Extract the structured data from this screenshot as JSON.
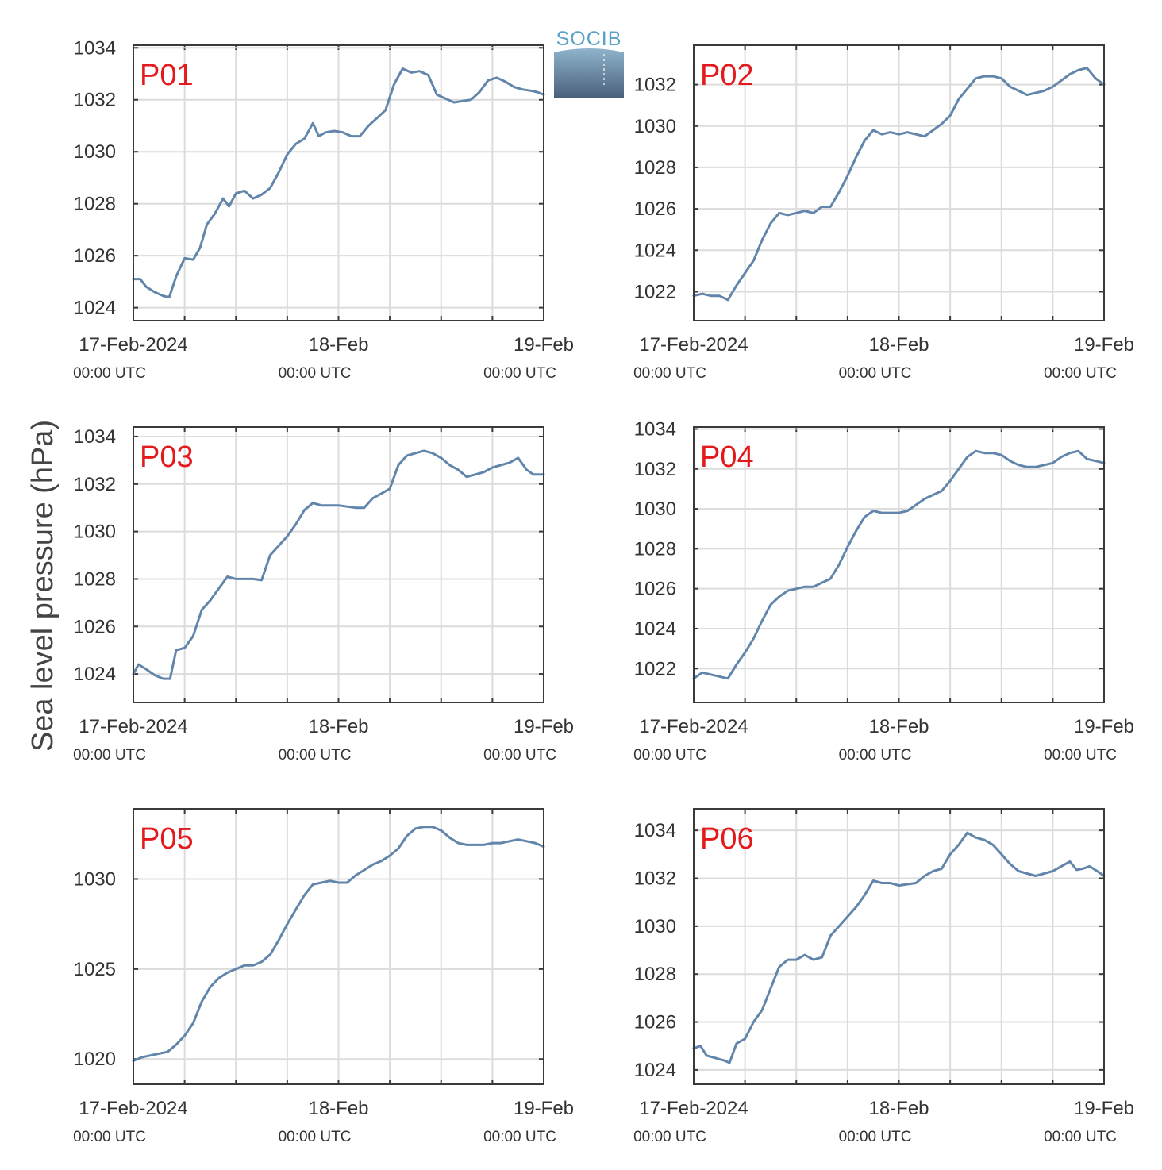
{
  "ylabel": "Sea level pressure (hPa)",
  "logo": {
    "text": "SOCIB"
  },
  "colors": {
    "series": "#6286ab",
    "title": "#e31a1c",
    "grid": "#dcdcdc",
    "frame": "#3a3a3a"
  },
  "x_ticks": [
    {
      "date": "17-Feb-2024",
      "time": "00:00 UTC"
    },
    {
      "date": "18-Feb",
      "time": "00:00 UTC"
    },
    {
      "date": "19-Feb",
      "time": "00:00 UTC"
    }
  ],
  "chart_data": [
    {
      "type": "line",
      "title": "P01",
      "xlabel": "",
      "ylabel": "Sea level pressure (hPa)",
      "xlim": [
        0,
        48
      ],
      "ylim": [
        1023.5,
        1034.1
      ],
      "yticks": [
        1024,
        1026,
        1028,
        1030,
        1032,
        1034
      ],
      "x": [
        0,
        0.8,
        1.5,
        2.5,
        3.5,
        4.2,
        5,
        6,
        7,
        7.8,
        8.6,
        9.5,
        10.5,
        11.2,
        12,
        13,
        14,
        15,
        16,
        17,
        18,
        19,
        20,
        21,
        21.7,
        22.5,
        23.5,
        24.5,
        25.5,
        26.5,
        27.5,
        28.5,
        29.5,
        30.5,
        31.5,
        32.5,
        33.5,
        34.5,
        35.5,
        36.5,
        37.5,
        38.5,
        39.5,
        40.5,
        41.5,
        42.5,
        43.5,
        44.5,
        45.5,
        46.5,
        47.2,
        48
      ],
      "y": [
        1025.1,
        1025.1,
        1024.8,
        1024.6,
        1024.45,
        1024.4,
        1025.2,
        1025.9,
        1025.85,
        1026.3,
        1027.2,
        1027.6,
        1028.2,
        1027.9,
        1028.4,
        1028.5,
        1028.2,
        1028.35,
        1028.6,
        1029.2,
        1029.9,
        1030.3,
        1030.5,
        1031.1,
        1030.6,
        1030.75,
        1030.8,
        1030.75,
        1030.6,
        1030.6,
        1031.0,
        1031.3,
        1031.6,
        1032.6,
        1033.2,
        1033.05,
        1033.1,
        1032.95,
        1032.2,
        1032.05,
        1031.9,
        1031.95,
        1032.0,
        1032.3,
        1032.75,
        1032.85,
        1032.7,
        1032.5,
        1032.4,
        1032.35,
        1032.3,
        1032.2
      ]
    },
    {
      "type": "line",
      "title": "P02",
      "xlabel": "",
      "ylabel": "Sea level pressure (hPa)",
      "xlim": [
        0,
        48
      ],
      "ylim": [
        1020.6,
        1033.9
      ],
      "yticks": [
        1022,
        1024,
        1026,
        1028,
        1030,
        1032
      ],
      "x": [
        0,
        1,
        2,
        3,
        4,
        5,
        6,
        7,
        8,
        9,
        10,
        11,
        12,
        13,
        14,
        15,
        16,
        17,
        18,
        19,
        20,
        21,
        22,
        23,
        24,
        25,
        26,
        27,
        28,
        29,
        30,
        31,
        32,
        33,
        34,
        35,
        36,
        37,
        38,
        39,
        40,
        41,
        42,
        43,
        44,
        45,
        46,
        47,
        48
      ],
      "y": [
        1021.8,
        1021.9,
        1021.8,
        1021.8,
        1021.6,
        1022.3,
        1022.9,
        1023.5,
        1024.5,
        1025.3,
        1025.8,
        1025.7,
        1025.8,
        1025.9,
        1025.8,
        1026.1,
        1026.1,
        1026.8,
        1027.6,
        1028.5,
        1029.3,
        1029.8,
        1029.6,
        1029.7,
        1029.6,
        1029.7,
        1029.6,
        1029.5,
        1029.8,
        1030.1,
        1030.5,
        1031.3,
        1031.8,
        1032.3,
        1032.4,
        1032.4,
        1032.3,
        1031.9,
        1031.7,
        1031.5,
        1031.6,
        1031.7,
        1031.9,
        1032.2,
        1032.5,
        1032.7,
        1032.8,
        1032.3,
        1032.0
      ]
    },
    {
      "type": "line",
      "title": "P03",
      "xlabel": "",
      "ylabel": "Sea level pressure (hPa)",
      "xlim": [
        0,
        48
      ],
      "ylim": [
        1022.8,
        1034.4
      ],
      "yticks": [
        1024,
        1026,
        1028,
        1030,
        1032,
        1034
      ],
      "x": [
        0,
        0.6,
        1.5,
        2.5,
        3.5,
        4.3,
        5,
        6,
        7,
        8,
        9,
        10,
        11,
        12,
        13,
        14,
        15,
        16,
        17,
        18,
        19,
        20,
        21,
        22,
        23,
        24,
        25,
        26,
        27,
        28,
        29,
        30,
        31,
        32,
        33,
        34,
        35,
        36,
        37,
        38,
        39,
        40,
        41,
        42,
        43,
        44,
        45,
        46,
        46.8,
        47.5,
        48
      ],
      "y": [
        1024.0,
        1024.4,
        1024.2,
        1023.95,
        1023.8,
        1023.8,
        1025.0,
        1025.1,
        1025.6,
        1026.7,
        1027.1,
        1027.6,
        1028.1,
        1028.0,
        1028.0,
        1028.0,
        1027.95,
        1029.0,
        1029.4,
        1029.8,
        1030.3,
        1030.9,
        1031.2,
        1031.1,
        1031.1,
        1031.1,
        1031.05,
        1031.0,
        1031.0,
        1031.4,
        1031.6,
        1031.8,
        1032.8,
        1033.2,
        1033.3,
        1033.4,
        1033.3,
        1033.1,
        1032.8,
        1032.6,
        1032.3,
        1032.4,
        1032.5,
        1032.7,
        1032.8,
        1032.9,
        1033.1,
        1032.6,
        1032.4,
        1032.4,
        1032.4
      ]
    },
    {
      "type": "line",
      "title": "P04",
      "xlabel": "",
      "ylabel": "Sea level pressure (hPa)",
      "xlim": [
        0,
        48
      ],
      "ylim": [
        1020.3,
        1034.1
      ],
      "yticks": [
        1022,
        1024,
        1026,
        1028,
        1030,
        1032,
        1034
      ],
      "x": [
        0,
        1,
        2,
        3,
        4,
        5,
        6,
        7,
        8,
        9,
        10,
        11,
        12,
        13,
        14,
        15,
        16,
        17,
        18,
        19,
        20,
        21,
        22,
        23,
        24,
        25,
        26,
        27,
        28,
        29,
        30,
        31,
        32,
        33,
        34,
        35,
        36,
        37,
        38,
        39,
        40,
        41,
        42,
        43,
        44,
        45,
        46,
        47,
        48
      ],
      "y": [
        1021.5,
        1021.8,
        1021.7,
        1021.6,
        1021.5,
        1022.2,
        1022.8,
        1023.5,
        1024.4,
        1025.2,
        1025.6,
        1025.9,
        1026.0,
        1026.1,
        1026.1,
        1026.3,
        1026.5,
        1027.2,
        1028.1,
        1028.9,
        1029.6,
        1029.9,
        1029.8,
        1029.8,
        1029.8,
        1029.9,
        1030.2,
        1030.5,
        1030.7,
        1030.9,
        1031.4,
        1032.0,
        1032.6,
        1032.9,
        1032.8,
        1032.8,
        1032.7,
        1032.4,
        1032.2,
        1032.1,
        1032.1,
        1032.2,
        1032.3,
        1032.6,
        1032.8,
        1032.9,
        1032.5,
        1032.4,
        1032.3
      ]
    },
    {
      "type": "line",
      "title": "P05",
      "xlabel": "",
      "ylabel": "Sea level pressure (hPa)",
      "xlim": [
        0,
        48
      ],
      "ylim": [
        1018.6,
        1033.9
      ],
      "yticks": [
        1020,
        1025,
        1030
      ],
      "x": [
        0,
        1,
        2,
        3,
        4,
        5,
        6,
        7,
        8,
        9,
        10,
        11,
        12,
        13,
        14,
        15,
        16,
        17,
        18,
        19,
        20,
        21,
        22,
        23,
        24,
        25,
        26,
        27,
        28,
        29,
        30,
        31,
        32,
        33,
        34,
        35,
        36,
        37,
        38,
        39,
        40,
        41,
        42,
        43,
        44,
        45,
        46,
        47,
        48
      ],
      "y": [
        1019.9,
        1020.1,
        1020.2,
        1020.3,
        1020.4,
        1020.8,
        1021.3,
        1022.0,
        1023.2,
        1024.0,
        1024.5,
        1024.8,
        1025.0,
        1025.2,
        1025.2,
        1025.4,
        1025.8,
        1026.6,
        1027.5,
        1028.3,
        1029.1,
        1029.7,
        1029.8,
        1029.9,
        1029.8,
        1029.8,
        1030.2,
        1030.5,
        1030.8,
        1031.0,
        1031.3,
        1031.7,
        1032.4,
        1032.8,
        1032.9,
        1032.9,
        1032.7,
        1032.3,
        1032.0,
        1031.9,
        1031.9,
        1031.9,
        1032.0,
        1032.0,
        1032.1,
        1032.2,
        1032.1,
        1032.0,
        1031.8
      ]
    },
    {
      "type": "line",
      "title": "P06",
      "xlabel": "",
      "ylabel": "Sea level pressure (hPa)",
      "xlim": [
        0,
        48
      ],
      "ylim": [
        1023.4,
        1034.9
      ],
      "yticks": [
        1024,
        1026,
        1028,
        1030,
        1032,
        1034
      ],
      "x": [
        0,
        0.8,
        1.5,
        2.5,
        3.5,
        4.2,
        5,
        6,
        7,
        8,
        9,
        10,
        11,
        12,
        13,
        14,
        15,
        16,
        17,
        18,
        19,
        20,
        21,
        22,
        23,
        24,
        25,
        26,
        27,
        28,
        29,
        30,
        31,
        32,
        33,
        34,
        35,
        36,
        37,
        38,
        39,
        40,
        41,
        42,
        43,
        44,
        44.8,
        45.5,
        46.3,
        47.2,
        48
      ],
      "y": [
        1024.9,
        1025.0,
        1024.6,
        1024.5,
        1024.4,
        1024.3,
        1025.1,
        1025.3,
        1026.0,
        1026.5,
        1027.4,
        1028.3,
        1028.6,
        1028.6,
        1028.8,
        1028.6,
        1028.7,
        1029.6,
        1030.0,
        1030.4,
        1030.8,
        1031.3,
        1031.9,
        1031.8,
        1031.8,
        1031.7,
        1031.75,
        1031.8,
        1032.1,
        1032.3,
        1032.4,
        1033.0,
        1033.4,
        1033.9,
        1033.7,
        1033.6,
        1033.4,
        1033.0,
        1032.6,
        1032.3,
        1032.2,
        1032.1,
        1032.2,
        1032.3,
        1032.5,
        1032.7,
        1032.35,
        1032.4,
        1032.5,
        1032.3,
        1032.1
      ]
    }
  ]
}
